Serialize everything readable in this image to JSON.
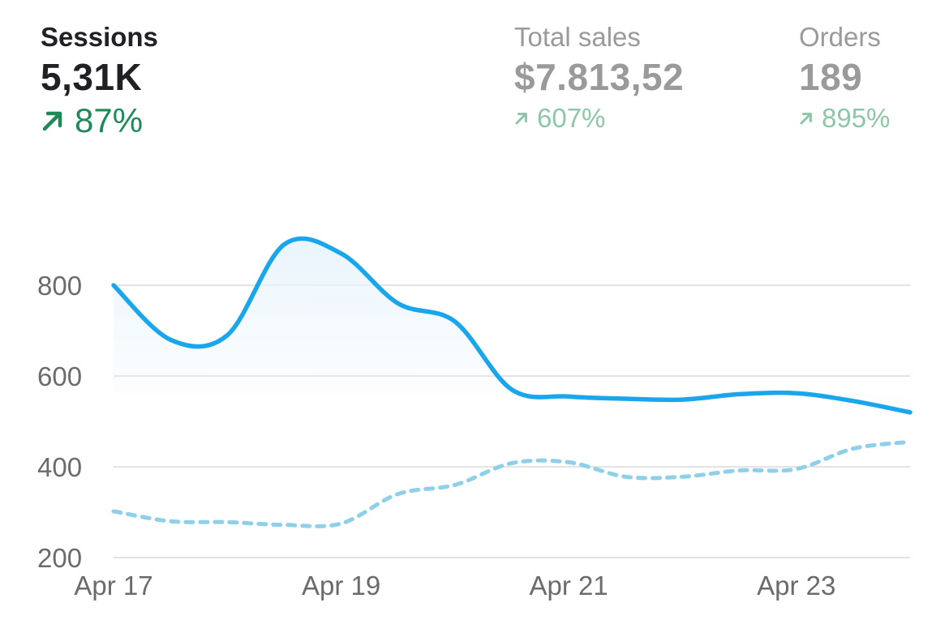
{
  "metrics": [
    {
      "title": "Sessions",
      "value": "5,31K",
      "change": "87%",
      "trend": "up",
      "active": true
    },
    {
      "title": "Total sales",
      "value": "$7.813,52",
      "change": "607%",
      "trend": "up",
      "active": false
    },
    {
      "title": "Orders",
      "value": "189",
      "change": "895%",
      "trend": "up",
      "active": false
    }
  ],
  "icons": {
    "trend_up": "arrow-up-right-icon"
  },
  "colors": {
    "current": "#1aa6ea",
    "previous": "#8ecfea",
    "positive": "#1f8a57",
    "positive_muted": "#8fc6aa",
    "grid": "#e3e3e3",
    "fill": "#e8f4fb"
  },
  "chart_data": {
    "type": "line",
    "x": [
      0,
      0.5,
      1,
      1.5,
      2,
      2.5,
      3,
      3.5,
      4,
      4.5,
      5,
      5.5,
      6,
      6.5,
      7
    ],
    "x_ticks": [
      {
        "x": 0,
        "label": "Apr 17"
      },
      {
        "x": 2,
        "label": "Apr 19"
      },
      {
        "x": 4,
        "label": "Apr 21"
      },
      {
        "x": 6,
        "label": "Apr 23"
      }
    ],
    "series": [
      {
        "style": "solid",
        "area_fill": true,
        "values": [
          800,
          680,
          690,
          890,
          870,
          760,
          720,
          570,
          555,
          550,
          548,
          560,
          562,
          545,
          520
        ]
      },
      {
        "style": "dotted",
        "area_fill": false,
        "values": [
          302,
          280,
          278,
          272,
          275,
          340,
          360,
          408,
          410,
          378,
          378,
          392,
          395,
          440,
          455
        ]
      }
    ],
    "y_ticks": [
      200,
      400,
      600,
      800
    ],
    "ylim": [
      200,
      800
    ],
    "grid": true,
    "legend": "none"
  }
}
